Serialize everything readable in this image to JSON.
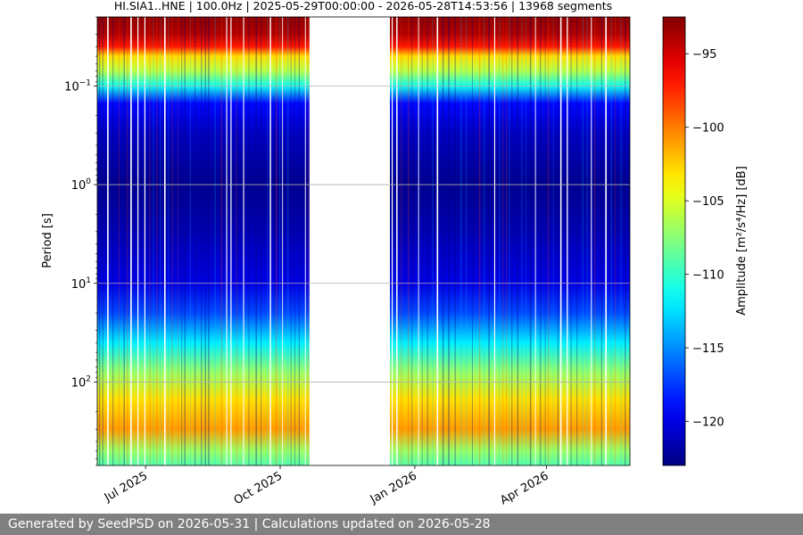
{
  "chart_data": {
    "type": "heatmap",
    "title": "HI.SIA1..HNE | 100.0Hz | 2025-05-29T00:00:00 - 2026-05-28T14:53:56 | 13968 segments",
    "ylabel": "Period [s]",
    "xlabel": "",
    "y_scale": "log",
    "y_inverted": true,
    "ylim": [
      0.02,
      700
    ],
    "y_ticks": [
      {
        "value": 0.1,
        "base": "10",
        "exp": "−1"
      },
      {
        "value": 1,
        "base": "10",
        "exp": "0"
      },
      {
        "value": 10,
        "base": "10",
        "exp": "1"
      },
      {
        "value": 100,
        "base": "10",
        "exp": "2"
      }
    ],
    "xlim": [
      "2025-05-29",
      "2026-05-28"
    ],
    "x_ticks": [
      {
        "date": "2025-07-01",
        "label": "Jul 2025"
      },
      {
        "date": "2025-10-01",
        "label": "Oct 2025"
      },
      {
        "date": "2026-01-01",
        "label": "Jan 2026"
      },
      {
        "date": "2026-04-01",
        "label": "Apr 2026"
      }
    ],
    "data_segments": [
      {
        "start": "2025-05-29",
        "end": "2025-10-21"
      },
      {
        "start": "2025-12-15",
        "end": "2026-05-28"
      }
    ],
    "gap": {
      "start": "2025-10-21",
      "end": "2025-12-15"
    },
    "amplitude_profile": [
      {
        "period": 0.02,
        "db": -93
      },
      {
        "period": 0.03,
        "db": -94
      },
      {
        "period": 0.04,
        "db": -97
      },
      {
        "period": 0.05,
        "db": -103
      },
      {
        "period": 0.07,
        "db": -106
      },
      {
        "period": 0.1,
        "db": -111
      },
      {
        "period": 0.15,
        "db": -119
      },
      {
        "period": 0.3,
        "db": -121
      },
      {
        "period": 1,
        "db": -122.5
      },
      {
        "period": 3,
        "db": -121.5
      },
      {
        "period": 10,
        "db": -120
      },
      {
        "period": 20,
        "db": -117
      },
      {
        "period": 40,
        "db": -112
      },
      {
        "period": 80,
        "db": -107
      },
      {
        "period": 150,
        "db": -103
      },
      {
        "period": 300,
        "db": -101
      },
      {
        "period": 500,
        "db": -107
      },
      {
        "period": 700,
        "db": -109
      }
    ],
    "colorbar": {
      "label": "Amplitude [m²/s⁴/Hz] [dB]",
      "colormap": "jet",
      "range": [
        -123,
        -92.5
      ],
      "ticks": [
        -95,
        -100,
        -105,
        -110,
        -115,
        -120
      ]
    }
  },
  "footer": {
    "text": "Generated by SeedPSD on 2026-05-31 | Calculations updated on 2026-05-28"
  }
}
